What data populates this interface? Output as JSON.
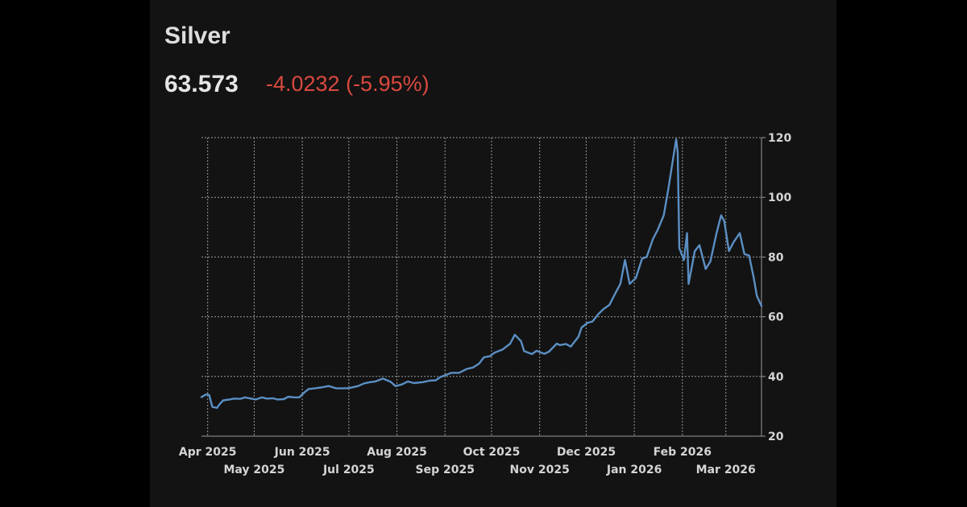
{
  "instrument": {
    "name": "Silver",
    "price": "63.573",
    "change": "-4.0232 (-5.95%)"
  },
  "colors": {
    "background": "#131313",
    "line": "#5b8fc4",
    "negative": "#d9493f",
    "grid": "#9a9a9a",
    "text": "#d4d4d4"
  },
  "chart_data": {
    "type": "line",
    "title": "",
    "xlabel": "",
    "ylabel": "",
    "xlim": [
      "2025-03-28",
      "2026-03-24"
    ],
    "ylim": [
      20,
      120
    ],
    "y_axis_side": "right",
    "y_ticks": [
      20,
      40,
      60,
      80,
      100,
      120
    ],
    "x_ticks": [
      {
        "date": "2025-04-01",
        "label": "Apr 2025",
        "row": 1
      },
      {
        "date": "2025-05-01",
        "label": "May 2025",
        "row": 2
      },
      {
        "date": "2025-06-01",
        "label": "Jun 2025",
        "row": 1
      },
      {
        "date": "2025-07-01",
        "label": "Jul 2025",
        "row": 2
      },
      {
        "date": "2025-08-01",
        "label": "Aug 2025",
        "row": 1
      },
      {
        "date": "2025-09-01",
        "label": "Sep 2025",
        "row": 2
      },
      {
        "date": "2025-10-01",
        "label": "Oct 2025",
        "row": 1
      },
      {
        "date": "2025-11-01",
        "label": "Nov 2025",
        "row": 2
      },
      {
        "date": "2025-12-01",
        "label": "Dec 2025",
        "row": 1
      },
      {
        "date": "2026-01-01",
        "label": "Jan 2026",
        "row": 2
      },
      {
        "date": "2026-02-01",
        "label": "Feb 2026",
        "row": 1
      },
      {
        "date": "2026-03-01",
        "label": "Mar 2026",
        "row": 2
      }
    ],
    "grid": true,
    "legend": "none",
    "series": [
      {
        "points": [
          [
            "2025-03-28",
            33.1
          ],
          [
            "2025-03-31",
            34.0
          ],
          [
            "2025-04-02",
            33.8
          ],
          [
            "2025-04-04",
            29.8
          ],
          [
            "2025-04-07",
            29.5
          ],
          [
            "2025-04-09",
            30.9
          ],
          [
            "2025-04-11",
            32.0
          ],
          [
            "2025-04-15",
            32.3
          ],
          [
            "2025-04-18",
            32.6
          ],
          [
            "2025-04-22",
            32.5
          ],
          [
            "2025-04-25",
            33.0
          ],
          [
            "2025-04-29",
            32.6
          ],
          [
            "2025-05-02",
            32.3
          ],
          [
            "2025-05-06",
            33.0
          ],
          [
            "2025-05-09",
            32.6
          ],
          [
            "2025-05-13",
            32.7
          ],
          [
            "2025-05-16",
            32.3
          ],
          [
            "2025-05-20",
            32.4
          ],
          [
            "2025-05-23",
            33.2
          ],
          [
            "2025-05-27",
            33.0
          ],
          [
            "2025-05-30",
            33.0
          ],
          [
            "2025-06-02",
            34.5
          ],
          [
            "2025-06-05",
            35.8
          ],
          [
            "2025-06-09",
            36.0
          ],
          [
            "2025-06-13",
            36.3
          ],
          [
            "2025-06-18",
            36.8
          ],
          [
            "2025-06-23",
            36.0
          ],
          [
            "2025-06-27",
            36.0
          ],
          [
            "2025-07-01",
            36.1
          ],
          [
            "2025-07-07",
            36.8
          ],
          [
            "2025-07-11",
            37.7
          ],
          [
            "2025-07-15",
            38.1
          ],
          [
            "2025-07-18",
            38.3
          ],
          [
            "2025-07-23",
            39.3
          ],
          [
            "2025-07-28",
            38.2
          ],
          [
            "2025-07-31",
            36.8
          ],
          [
            "2025-08-04",
            37.3
          ],
          [
            "2025-08-08",
            38.3
          ],
          [
            "2025-08-12",
            37.8
          ],
          [
            "2025-08-18",
            38.1
          ],
          [
            "2025-08-22",
            38.6
          ],
          [
            "2025-08-26",
            38.7
          ],
          [
            "2025-08-29",
            39.8
          ],
          [
            "2025-09-02",
            40.6
          ],
          [
            "2025-09-05",
            41.2
          ],
          [
            "2025-09-10",
            41.2
          ],
          [
            "2025-09-15",
            42.5
          ],
          [
            "2025-09-19",
            43.0
          ],
          [
            "2025-09-23",
            44.3
          ],
          [
            "2025-09-26",
            46.4
          ],
          [
            "2025-09-30",
            46.8
          ],
          [
            "2025-10-03",
            48.0
          ],
          [
            "2025-10-08",
            49.0
          ],
          [
            "2025-10-13",
            51.0
          ],
          [
            "2025-10-16",
            54.0
          ],
          [
            "2025-10-20",
            51.8
          ],
          [
            "2025-10-22",
            48.5
          ],
          [
            "2025-10-27",
            47.5
          ],
          [
            "2025-10-30",
            48.6
          ],
          [
            "2025-11-04",
            47.6
          ],
          [
            "2025-11-07",
            48.3
          ],
          [
            "2025-11-12",
            51.0
          ],
          [
            "2025-11-14",
            50.5
          ],
          [
            "2025-11-18",
            50.9
          ],
          [
            "2025-11-21",
            50.0
          ],
          [
            "2025-11-26",
            53.3
          ],
          [
            "2025-11-28",
            56.4
          ],
          [
            "2025-12-02",
            58.0
          ],
          [
            "2025-12-05",
            58.4
          ],
          [
            "2025-12-09",
            61.0
          ],
          [
            "2025-12-12",
            62.5
          ],
          [
            "2025-12-16",
            64.0
          ],
          [
            "2025-12-19",
            67.1
          ],
          [
            "2025-12-23",
            71.0
          ],
          [
            "2025-12-26",
            79.0
          ],
          [
            "2025-12-29",
            71.0
          ],
          [
            "2026-01-02",
            73.0
          ],
          [
            "2026-01-06",
            79.5
          ],
          [
            "2026-01-09",
            80.0
          ],
          [
            "2026-01-13",
            86.0
          ],
          [
            "2026-01-16",
            89.0
          ],
          [
            "2026-01-20",
            94.0
          ],
          [
            "2026-01-23",
            103.0
          ],
          [
            "2026-01-26",
            113.0
          ],
          [
            "2026-01-28",
            119.5
          ],
          [
            "2026-01-29",
            115.0
          ],
          [
            "2026-01-30",
            83.0
          ],
          [
            "2026-02-02",
            79.0
          ],
          [
            "2026-02-04",
            88.0
          ],
          [
            "2026-02-05",
            71.0
          ],
          [
            "2026-02-09",
            82.0
          ],
          [
            "2026-02-12",
            84.0
          ],
          [
            "2026-02-16",
            76.0
          ],
          [
            "2026-02-19",
            78.5
          ],
          [
            "2026-02-23",
            88.0
          ],
          [
            "2026-02-26",
            94.0
          ],
          [
            "2026-02-28",
            92.0
          ],
          [
            "2026-03-03",
            82.0
          ],
          [
            "2026-03-06",
            85.0
          ],
          [
            "2026-03-10",
            88.0
          ],
          [
            "2026-03-13",
            81.0
          ],
          [
            "2026-03-16",
            80.5
          ],
          [
            "2026-03-19",
            73.0
          ],
          [
            "2026-03-21",
            67.0
          ],
          [
            "2026-03-24",
            63.573
          ]
        ]
      }
    ]
  }
}
